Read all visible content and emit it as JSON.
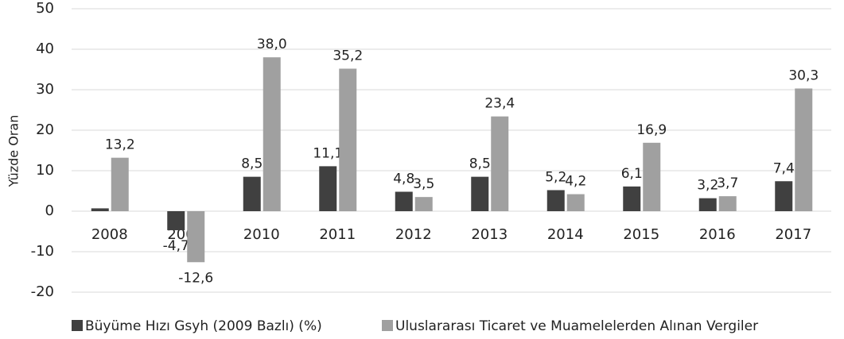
{
  "chart_data": {
    "type": "bar",
    "y_axis_label": "Yüzde Oran",
    "categories": [
      "2008",
      "2009",
      "2010",
      "2011",
      "2012",
      "2013",
      "2014",
      "2015",
      "2016",
      "2017"
    ],
    "series": [
      {
        "name": "Büyüme Hızı Gsyh (2009 Bazlı) (%)",
        "color": "#404040",
        "values": [
          0.7,
          -4.7,
          8.5,
          11.1,
          4.8,
          8.5,
          5.2,
          6.1,
          3.2,
          7.4
        ],
        "value_labels": [
          null,
          "-4,7",
          "8,5",
          "11,1",
          "4,8",
          "8,5",
          "5,2",
          "6,1",
          "3,2",
          "7,4"
        ]
      },
      {
        "name": "Uluslararası Ticaret ve Muamelelerden Alınan Vergiler",
        "color": "#a0a0a0",
        "values": [
          13.2,
          -12.6,
          38.0,
          35.2,
          3.5,
          23.4,
          4.2,
          16.9,
          3.7,
          30.3
        ],
        "value_labels": [
          "13,2",
          "-12,6",
          "38,0",
          "35,2",
          "3,5",
          "23,4",
          "4,2",
          "16,9",
          "3,7",
          "30,3"
        ]
      }
    ],
    "ylim": [
      -20,
      50
    ],
    "yticks": [
      -20,
      -10,
      0,
      10,
      20,
      30,
      40,
      50
    ],
    "grid": true,
    "legend": "bottom"
  }
}
